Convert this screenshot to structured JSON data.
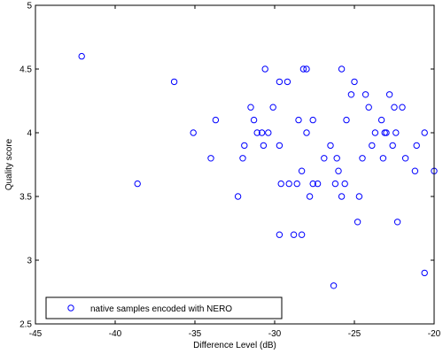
{
  "chart_data": {
    "type": "scatter",
    "title": "",
    "xlabel": "Difference Level (dB)",
    "ylabel": "Quality score",
    "xlim": [
      -45,
      -20
    ],
    "ylim": [
      2.5,
      5
    ],
    "xticks": [
      -45,
      -40,
      -35,
      -30,
      -25,
      -20
    ],
    "yticks": [
      2.5,
      3,
      3.5,
      4,
      4.5,
      5
    ],
    "grid": false,
    "legend_placement": "bottom-left",
    "marker": "open-circle",
    "colors": {
      "marker": "#0000ff",
      "axes": "#000000",
      "background": "#ffffff"
    },
    "series": [
      {
        "name": "native samples encoded with NERO",
        "points": [
          [
            -42.1,
            4.6
          ],
          [
            -38.6,
            3.6
          ],
          [
            -36.3,
            4.4
          ],
          [
            -35.1,
            4.0
          ],
          [
            -34.0,
            3.8
          ],
          [
            -33.7,
            4.1
          ],
          [
            -32.3,
            3.5
          ],
          [
            -32.0,
            3.8
          ],
          [
            -31.9,
            3.9
          ],
          [
            -31.5,
            4.2
          ],
          [
            -31.3,
            4.1
          ],
          [
            -31.1,
            4.0
          ],
          [
            -30.8,
            4.0
          ],
          [
            -30.7,
            3.9
          ],
          [
            -30.6,
            4.5
          ],
          [
            -30.4,
            4.0
          ],
          [
            -30.1,
            4.2
          ],
          [
            -29.7,
            4.4
          ],
          [
            -29.7,
            3.9
          ],
          [
            -29.6,
            3.6
          ],
          [
            -29.7,
            3.2
          ],
          [
            -29.2,
            4.4
          ],
          [
            -29.1,
            3.6
          ],
          [
            -28.8,
            3.2
          ],
          [
            -28.6,
            3.6
          ],
          [
            -28.5,
            4.1
          ],
          [
            -28.3,
            3.2
          ],
          [
            -28.3,
            3.7
          ],
          [
            -28.2,
            4.5
          ],
          [
            -28.0,
            4.5
          ],
          [
            -28.0,
            4.0
          ],
          [
            -27.8,
            3.5
          ],
          [
            -27.6,
            3.6
          ],
          [
            -27.6,
            4.1
          ],
          [
            -27.3,
            3.6
          ],
          [
            -26.9,
            3.8
          ],
          [
            -26.5,
            3.9
          ],
          [
            -26.3,
            2.8
          ],
          [
            -26.2,
            3.6
          ],
          [
            -26.1,
            3.8
          ],
          [
            -26.0,
            3.7
          ],
          [
            -25.8,
            4.5
          ],
          [
            -25.8,
            3.5
          ],
          [
            -25.6,
            3.6
          ],
          [
            -25.5,
            4.1
          ],
          [
            -25.2,
            4.3
          ],
          [
            -25.0,
            4.4
          ],
          [
            -24.8,
            3.3
          ],
          [
            -24.7,
            3.5
          ],
          [
            -24.5,
            3.8
          ],
          [
            -24.3,
            4.3
          ],
          [
            -24.1,
            4.2
          ],
          [
            -23.9,
            3.9
          ],
          [
            -23.7,
            4.0
          ],
          [
            -23.3,
            4.1
          ],
          [
            -23.2,
            3.8
          ],
          [
            -23.1,
            4.0
          ],
          [
            -23.0,
            4.0
          ],
          [
            -22.8,
            4.3
          ],
          [
            -22.6,
            3.9
          ],
          [
            -22.5,
            4.2
          ],
          [
            -22.4,
            4.0
          ],
          [
            -22.3,
            3.3
          ],
          [
            -22.0,
            4.2
          ],
          [
            -21.8,
            3.8
          ],
          [
            -21.2,
            3.7
          ],
          [
            -21.1,
            3.9
          ],
          [
            -20.6,
            4.0
          ],
          [
            -20.6,
            2.9
          ],
          [
            -20.0,
            3.7
          ]
        ]
      }
    ]
  }
}
